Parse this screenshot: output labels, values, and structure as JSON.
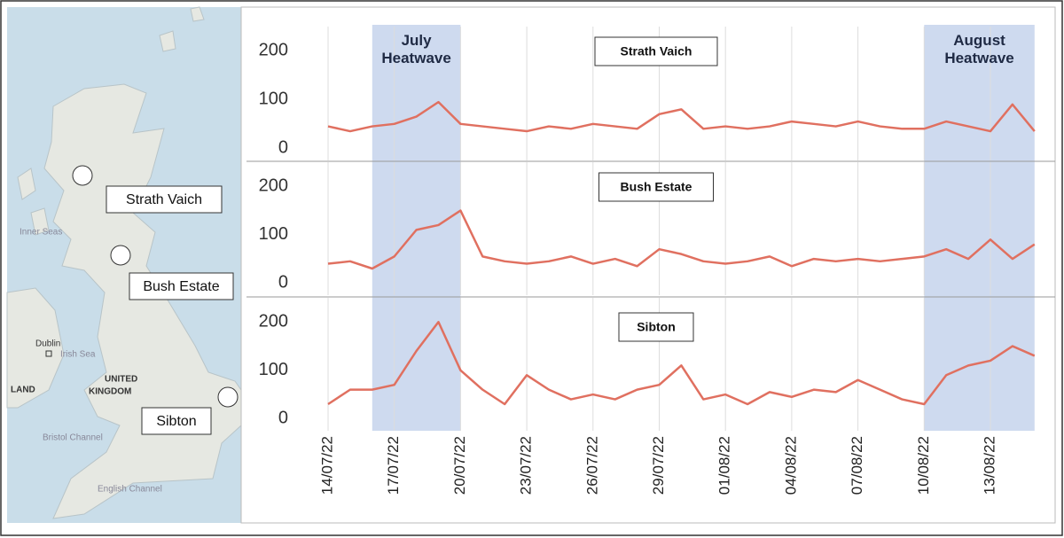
{
  "map": {
    "labels": [
      "Inner Seas",
      "Dublin",
      "Irish Sea",
      "UNITED",
      "KINGDOM",
      "LAND",
      "Bristol Channel",
      "English Channel"
    ],
    "sites": [
      "Strath Vaich",
      "Bush Estate",
      "Sibton"
    ]
  },
  "highlights": [
    {
      "label": "July Heatwave",
      "start": "16/07/22",
      "end": "20/07/22",
      "color": "#c5d3ec"
    },
    {
      "label": "August Heatwave",
      "start": "10/08/22",
      "end": "15/08/22",
      "color": "#c5d3ec"
    }
  ],
  "chart_data": [
    {
      "type": "line",
      "title": "Strath Vaich",
      "color": "#e07060",
      "x": [
        "14/07/22",
        "15/07/22",
        "16/07/22",
        "17/07/22",
        "18/07/22",
        "19/07/22",
        "20/07/22",
        "21/07/22",
        "22/07/22",
        "23/07/22",
        "24/07/22",
        "25/07/22",
        "26/07/22",
        "27/07/22",
        "28/07/22",
        "29/07/22",
        "30/07/22",
        "31/07/22",
        "01/08/22",
        "02/08/22",
        "03/08/22",
        "04/08/22",
        "05/08/22",
        "06/08/22",
        "07/08/22",
        "08/08/22",
        "09/08/22",
        "10/08/22",
        "11/08/22",
        "12/08/22",
        "13/08/22",
        "14/08/22",
        "15/08/22"
      ],
      "values": [
        45,
        35,
        45,
        50,
        65,
        95,
        50,
        45,
        40,
        35,
        45,
        40,
        50,
        45,
        40,
        70,
        80,
        40,
        45,
        40,
        45,
        55,
        50,
        45,
        55,
        45,
        40,
        40,
        55,
        45,
        35,
        90,
        35
      ],
      "ylim": [
        -25,
        250
      ],
      "yticks": [
        0,
        100,
        200
      ],
      "xticks": [
        "14/07/22",
        "17/07/22",
        "20/07/22",
        "23/07/22",
        "26/07/22",
        "29/07/22",
        "01/08/22",
        "04/08/22",
        "07/08/22",
        "10/08/22",
        "13/08/22"
      ],
      "grid": true
    },
    {
      "type": "line",
      "title": "Bush Estate",
      "color": "#e07060",
      "x": [
        "14/07/22",
        "15/07/22",
        "16/07/22",
        "17/07/22",
        "18/07/22",
        "19/07/22",
        "20/07/22",
        "21/07/22",
        "22/07/22",
        "23/07/22",
        "24/07/22",
        "25/07/22",
        "26/07/22",
        "27/07/22",
        "28/07/22",
        "29/07/22",
        "30/07/22",
        "31/07/22",
        "01/08/22",
        "02/08/22",
        "03/08/22",
        "04/08/22",
        "05/08/22",
        "06/08/22",
        "07/08/22",
        "08/08/22",
        "09/08/22",
        "10/08/22",
        "11/08/22",
        "12/08/22",
        "13/08/22",
        "14/08/22",
        "15/08/22"
      ],
      "values": [
        40,
        45,
        30,
        55,
        110,
        120,
        150,
        55,
        45,
        40,
        45,
        55,
        40,
        50,
        35,
        70,
        60,
        45,
        40,
        45,
        55,
        35,
        50,
        45,
        50,
        45,
        50,
        55,
        70,
        50,
        90,
        50,
        80
      ],
      "ylim": [
        -25,
        250
      ],
      "yticks": [
        0,
        100,
        200
      ],
      "xticks": [
        "14/07/22",
        "17/07/22",
        "20/07/22",
        "23/07/22",
        "26/07/22",
        "29/07/22",
        "01/08/22",
        "04/08/22",
        "07/08/22",
        "10/08/22",
        "13/08/22"
      ],
      "grid": true
    },
    {
      "type": "line",
      "title": "Sibton",
      "color": "#e07060",
      "x": [
        "14/07/22",
        "15/07/22",
        "16/07/22",
        "17/07/22",
        "18/07/22",
        "19/07/22",
        "20/07/22",
        "21/07/22",
        "22/07/22",
        "23/07/22",
        "24/07/22",
        "25/07/22",
        "26/07/22",
        "27/07/22",
        "28/07/22",
        "29/07/22",
        "30/07/22",
        "31/07/22",
        "01/08/22",
        "02/08/22",
        "03/08/22",
        "04/08/22",
        "05/08/22",
        "06/08/22",
        "07/08/22",
        "08/08/22",
        "09/08/22",
        "10/08/22",
        "11/08/22",
        "12/08/22",
        "13/08/22",
        "14/08/22",
        "15/08/22"
      ],
      "values": [
        30,
        60,
        60,
        70,
        140,
        200,
        100,
        60,
        30,
        90,
        60,
        40,
        50,
        40,
        60,
        70,
        110,
        40,
        50,
        30,
        55,
        45,
        60,
        55,
        80,
        60,
        40,
        30,
        90,
        110,
        120,
        150,
        130
      ],
      "ylim": [
        -25,
        250
      ],
      "yticks": [
        0,
        100,
        200
      ],
      "xticks": [
        "14/07/22",
        "17/07/22",
        "20/07/22",
        "23/07/22",
        "26/07/22",
        "29/07/22",
        "01/08/22",
        "04/08/22",
        "07/08/22",
        "10/08/22",
        "13/08/22"
      ],
      "grid": true
    }
  ]
}
